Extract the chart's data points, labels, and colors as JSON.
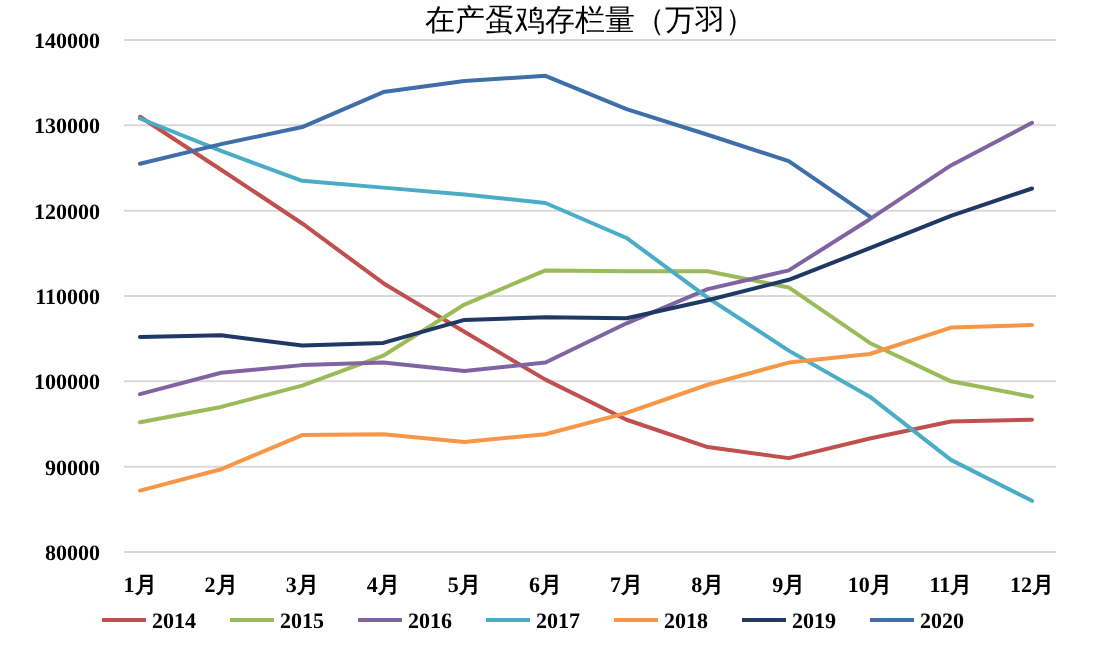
{
  "chart_data": {
    "type": "line",
    "title": "在产蛋鸡存栏量（万羽）",
    "categories": [
      "1月",
      "2月",
      "3月",
      "4月",
      "5月",
      "6月",
      "7月",
      "8月",
      "9月",
      "10月",
      "11月",
      "12月"
    ],
    "ylim": [
      80000,
      140000
    ],
    "yticks": [
      80000,
      90000,
      100000,
      110000,
      120000,
      130000,
      140000
    ],
    "grid": "y",
    "legend": "bottom",
    "marker": "none",
    "line_style": "solid",
    "series": [
      {
        "name": "2014",
        "color": "#c0504d",
        "values": [
          131000,
          124800,
          118500,
          111500,
          105800,
          100200,
          95500,
          92300,
          91000,
          93300,
          95300,
          95500
        ]
      },
      {
        "name": "2015",
        "color": "#9bbb59",
        "values": [
          95200,
          97000,
          99500,
          103000,
          109000,
          113000,
          112900,
          112900,
          111000,
          104500,
          100000,
          98200
        ]
      },
      {
        "name": "2016",
        "color": "#8064a2",
        "values": [
          98500,
          101000,
          101900,
          102200,
          101200,
          102200,
          106800,
          110800,
          113000,
          119000,
          125300,
          130300
        ]
      },
      {
        "name": "2017",
        "color": "#4bacc6",
        "values": [
          130800,
          127000,
          123500,
          122700,
          121900,
          120900,
          116800,
          109800,
          103600,
          98200,
          90800,
          86000
        ]
      },
      {
        "name": "2018",
        "color": "#f79646",
        "values": [
          87200,
          89700,
          93700,
          93800,
          92900,
          93800,
          96300,
          99600,
          102200,
          103200,
          106300,
          106600
        ]
      },
      {
        "name": "2019",
        "color": "#1f3864",
        "values": [
          105200,
          105400,
          104200,
          104500,
          107200,
          107500,
          107400,
          109500,
          111900,
          115600,
          119400,
          122600
        ]
      },
      {
        "name": "2020",
        "color": "#3f6ea8",
        "values": [
          125500,
          127800,
          129800,
          133900,
          135200,
          135800,
          131900,
          128900,
          125800,
          119300,
          null,
          null
        ]
      }
    ]
  }
}
